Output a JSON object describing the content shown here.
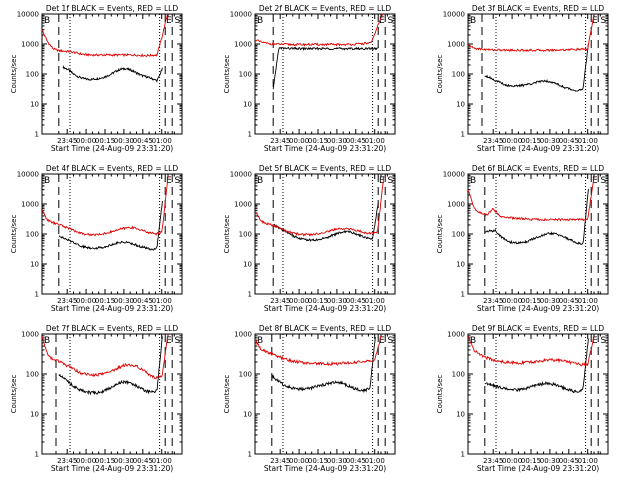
{
  "colors": {
    "events": "#000000",
    "lld": "#e00000"
  },
  "chart_data": [
    {
      "type": "line",
      "title": "Det 1f BLACK = Events, RED = LLD",
      "xlabel": "Start Time (24-Aug-09 23:31:20)",
      "ylabel": "Counts/sec",
      "yscale": "log",
      "ylim": [
        1,
        10000
      ],
      "xtick_labels": [
        "23:45",
        "00:00",
        "00:15",
        "00:30",
        "00:45",
        "01:00"
      ],
      "ytick_labels": [
        "1",
        "10",
        "100",
        "1000",
        "10000"
      ],
      "corner_left": "B",
      "corner_right": "E S",
      "series": [
        {
          "key": "events",
          "start": 0.15,
          "end": 0.86,
          "values": [
            170,
            140,
            100,
            80,
            70,
            66,
            68,
            72,
            80,
            95,
            120,
            145,
            150,
            135,
            110,
            90,
            80,
            70,
            60,
            150
          ]
        },
        {
          "key": "lld",
          "start": 0.0,
          "end": 0.9,
          "values": [
            3000,
            1200,
            700,
            600,
            580,
            560,
            520,
            470,
            440,
            430,
            430,
            430,
            430,
            430,
            430,
            430,
            430,
            430,
            420,
            410,
            420,
            430,
            2000,
            12000
          ]
        }
      ],
      "markers": {
        "dashed": [
          0.12,
          0.88,
          0.93
        ],
        "dotted": [
          0.2,
          0.84
        ]
      }
    },
    {
      "type": "line",
      "title": "Det 2f BLACK = Events, RED = LLD",
      "xlabel": "Start Time (24-Aug-09 23:31:20)",
      "ylabel": "Counts/sec",
      "yscale": "log",
      "ylim": [
        1,
        10000
      ],
      "xtick_labels": [
        "23:45",
        "00:00",
        "00:15",
        "00:30",
        "00:45",
        "01:00"
      ],
      "ytick_labels": [
        "1",
        "10",
        "100",
        "1000",
        "10000"
      ],
      "corner_left": "B",
      "corner_right": "E S",
      "series": [
        {
          "key": "events",
          "start": 0.13,
          "end": 0.88,
          "values": [
            30,
            720,
            720,
            710,
            700,
            700,
            700,
            700,
            700,
            700,
            700,
            700,
            700,
            700,
            700,
            700,
            700,
            700,
            700,
            700
          ]
        },
        {
          "key": "lld",
          "start": 0.0,
          "end": 0.92,
          "values": [
            1400,
            1150,
            1050,
            1000,
            980,
            970,
            960,
            960,
            960,
            960,
            960,
            960,
            960,
            960,
            960,
            960,
            980,
            1000,
            1050,
            1100,
            4000,
            12000
          ]
        }
      ],
      "markers": {
        "dashed": [
          0.13,
          0.88,
          0.93
        ],
        "dotted": [
          0.2,
          0.84
        ]
      }
    },
    {
      "type": "line",
      "title": "Det 3f BLACK = Events, RED = LLD",
      "xlabel": "Start Time (24-Aug-09 23:31:20)",
      "ylabel": "Counts/sec",
      "yscale": "log",
      "ylim": [
        1,
        10000
      ],
      "xtick_labels": [
        "23:45",
        "00:00",
        "00:15",
        "00:30",
        "00:45",
        "01:00"
      ],
      "ytick_labels": [
        "1",
        "10",
        "100",
        "1000",
        "10000"
      ],
      "corner_left": "B",
      "corner_right": "E S",
      "series": [
        {
          "key": "events",
          "start": 0.12,
          "end": 0.86,
          "values": [
            90,
            75,
            60,
            50,
            42,
            40,
            40,
            42,
            46,
            50,
            56,
            60,
            56,
            48,
            40,
            34,
            30,
            28,
            30,
            1000
          ]
        },
        {
          "key": "lld",
          "start": 0.0,
          "end": 0.9,
          "values": [
            900,
            720,
            680,
            650,
            640,
            630,
            620,
            620,
            620,
            620,
            620,
            620,
            620,
            620,
            630,
            640,
            650,
            660,
            660,
            680,
            10000
          ]
        }
      ],
      "markers": {
        "dashed": [
          0.1,
          0.88,
          0.93
        ],
        "dotted": [
          0.2,
          0.84
        ]
      }
    },
    {
      "type": "line",
      "title": "Det 4f BLACK = Events, RED = LLD",
      "xlabel": "Start Time (24-Aug-09 23:31:20)",
      "ylabel": "Counts/sec",
      "yscale": "log",
      "ylim": [
        1,
        10000
      ],
      "xtick_labels": [
        "23:45",
        "00:00",
        "00:15",
        "00:30",
        "00:45",
        "01:00"
      ],
      "ytick_labels": [
        "1",
        "10",
        "100",
        "1000",
        "10000"
      ],
      "corner_left": "B",
      "corner_right": "E S",
      "series": [
        {
          "key": "events",
          "start": 0.12,
          "end": 0.86,
          "values": [
            90,
            70,
            60,
            50,
            40,
            36,
            34,
            34,
            36,
            40,
            46,
            52,
            54,
            50,
            44,
            38,
            34,
            30,
            35,
            1200
          ]
        },
        {
          "key": "lld",
          "start": 0.0,
          "end": 0.9,
          "values": [
            600,
            280,
            230,
            200,
            170,
            140,
            115,
            100,
            95,
            95,
            100,
            110,
            125,
            145,
            160,
            165,
            150,
            125,
            110,
            100,
            120,
            8000
          ]
        }
      ],
      "markers": {
        "dashed": [
          0.12,
          0.88,
          0.93
        ],
        "dotted": [
          0.2,
          0.84
        ]
      }
    },
    {
      "type": "line",
      "title": "Det 5f BLACK = Events, RED = LLD",
      "xlabel": "Start Time (24-Aug-09 23:31:20)",
      "ylabel": "Counts/sec",
      "yscale": "log",
      "ylim": [
        1,
        10000
      ],
      "xtick_labels": [
        "23:45",
        "00:00",
        "00:15",
        "00:30",
        "00:45",
        "01:00"
      ],
      "ytick_labels": [
        "1",
        "10",
        "100",
        "1000",
        "10000"
      ],
      "corner_left": "B",
      "corner_right": "E S",
      "series": [
        {
          "key": "events",
          "start": 0.13,
          "end": 0.88,
          "values": [
            200,
            160,
            130,
            100,
            80,
            70,
            64,
            62,
            64,
            70,
            80,
            95,
            110,
            120,
            115,
            100,
            85,
            75,
            70,
            1100
          ]
        },
        {
          "key": "lld",
          "start": 0.0,
          "end": 0.92,
          "values": [
            600,
            260,
            220,
            190,
            160,
            130,
            110,
            100,
            95,
            95,
            100,
            110,
            125,
            140,
            150,
            150,
            140,
            125,
            110,
            105,
            120,
            9000
          ]
        }
      ],
      "markers": {
        "dashed": [
          0.13,
          0.88,
          0.93
        ],
        "dotted": [
          0.2,
          0.84
        ]
      }
    },
    {
      "type": "line",
      "title": "Det 6f BLACK = Events, RED = LLD",
      "xlabel": "Start Time (24-Aug-09 23:31:20)",
      "ylabel": "Counts/sec",
      "yscale": "log",
      "ylim": [
        1,
        10000
      ],
      "xtick_labels": [
        "23:45",
        "00:00",
        "00:15",
        "00:30",
        "00:45",
        "01:00"
      ],
      "ytick_labels": [
        "1",
        "10",
        "100",
        "1000",
        "10000"
      ],
      "corner_left": "B",
      "corner_right": "E S",
      "series": [
        {
          "key": "events",
          "start": 0.12,
          "end": 0.86,
          "values": [
            120,
            125,
            130,
            80,
            60,
            52,
            50,
            52,
            58,
            70,
            80,
            95,
            105,
            100,
            88,
            72,
            60,
            50,
            44,
            3000
          ]
        },
        {
          "key": "lld",
          "start": 0.0,
          "end": 0.9,
          "values": [
            3000,
            700,
            500,
            420,
            700,
            400,
            360,
            340,
            330,
            320,
            310,
            305,
            300,
            300,
            300,
            300,
            300,
            300,
            300,
            310,
            8000
          ]
        }
      ],
      "markers": {
        "dashed": [
          0.12,
          0.88,
          0.93
        ],
        "dotted": [
          0.2,
          0.84
        ]
      }
    },
    {
      "type": "line",
      "title": "Det 7f BLACK = Events, RED = LLD",
      "xlabel": "Start Time (24-Aug-09 23:31:20)",
      "ylabel": "Counts/sec",
      "yscale": "log",
      "ylim": [
        1,
        1000
      ],
      "xtick_labels": [
        "23:45",
        "00:00",
        "00:15",
        "00:30",
        "00:45",
        "01:00"
      ],
      "ytick_labels": [
        "1",
        "10",
        "100",
        "1000"
      ],
      "corner_left": "B",
      "corner_right": "E S",
      "series": [
        {
          "key": "events",
          "start": 0.12,
          "end": 0.86,
          "values": [
            100,
            80,
            60,
            46,
            40,
            36,
            34,
            34,
            36,
            42,
            50,
            60,
            64,
            60,
            52,
            44,
            38,
            35,
            38,
            900
          ]
        },
        {
          "key": "lld",
          "start": 0.0,
          "end": 0.9,
          "values": [
            900,
            280,
            230,
            200,
            165,
            140,
            115,
            100,
            95,
            95,
            100,
            110,
            125,
            150,
            170,
            170,
            150,
            120,
            95,
            80,
            90,
            1000
          ]
        }
      ],
      "markers": {
        "dashed": [
          0.1,
          0.88,
          0.93
        ],
        "dotted": [
          0.2,
          0.84
        ]
      }
    },
    {
      "type": "line",
      "title": "Det 8f BLACK = Events, RED = LLD",
      "xlabel": "Start Time (24-Aug-09 23:31:20)",
      "ylabel": "Counts/sec",
      "yscale": "log",
      "ylim": [
        1,
        1000
      ],
      "xtick_labels": [
        "23:45",
        "00:00",
        "00:15",
        "00:30",
        "00:45",
        "01:00"
      ],
      "ytick_labels": [
        "1",
        "10",
        "100",
        "1000"
      ],
      "corner_left": "B",
      "corner_right": "E S",
      "series": [
        {
          "key": "events",
          "start": 0.12,
          "end": 0.86,
          "values": [
            90,
            70,
            55,
            48,
            44,
            42,
            42,
            44,
            48,
            52,
            56,
            60,
            62,
            58,
            50,
            44,
            40,
            38,
            45,
            900
          ]
        },
        {
          "key": "lld",
          "start": 0.0,
          "end": 0.9,
          "values": [
            700,
            400,
            350,
            300,
            260,
            230,
            210,
            200,
            190,
            185,
            180,
            180,
            180,
            180,
            185,
            190,
            195,
            200,
            210,
            220,
            900
          ]
        }
      ],
      "markers": {
        "dashed": [
          0.12,
          0.88,
          0.93
        ],
        "dotted": [
          0.2,
          0.84
        ]
      }
    },
    {
      "type": "line",
      "title": "Det 9f BLACK = Events, RED = LLD",
      "xlabel": "Start Time (24-Aug-09 23:31:20)",
      "ylabel": "Counts/sec",
      "yscale": "log",
      "ylim": [
        1,
        1000
      ],
      "xtick_labels": [
        "23:45",
        "00:00",
        "00:15",
        "00:30",
        "00:45",
        "01:00"
      ],
      "ytick_labels": [
        "1",
        "10",
        "100",
        "1000"
      ],
      "corner_left": "B",
      "corner_right": "E S",
      "series": [
        {
          "key": "events",
          "start": 0.12,
          "end": 0.86,
          "values": [
            60,
            55,
            50,
            46,
            42,
            40,
            40,
            42,
            45,
            50,
            54,
            58,
            58,
            54,
            48,
            42,
            38,
            35,
            40,
            800
          ]
        },
        {
          "key": "lld",
          "start": 0.0,
          "end": 0.9,
          "values": [
            900,
            400,
            300,
            260,
            230,
            210,
            200,
            195,
            190,
            190,
            195,
            200,
            210,
            220,
            225,
            220,
            210,
            195,
            180,
            170,
            180,
            900
          ]
        }
      ],
      "markers": {
        "dashed": [
          0.12,
          0.88,
          0.93
        ],
        "dotted": [
          0.2,
          0.84
        ]
      }
    }
  ]
}
